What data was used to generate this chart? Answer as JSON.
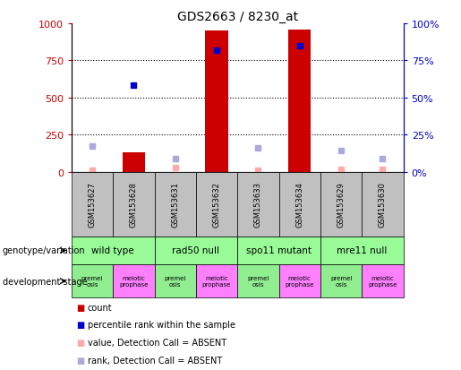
{
  "title": "GDS2663 / 8230_at",
  "samples": [
    "GSM153627",
    "GSM153628",
    "GSM153631",
    "GSM153632",
    "GSM153633",
    "GSM153634",
    "GSM153629",
    "GSM153630"
  ],
  "count_values": [
    null,
    130,
    null,
    950,
    null,
    960,
    null,
    null
  ],
  "count_absent": [
    10,
    null,
    25,
    null,
    10,
    null,
    15,
    15
  ],
  "rank_values": [
    null,
    58,
    null,
    82,
    null,
    85,
    null,
    null
  ],
  "rank_absent": [
    17,
    null,
    9,
    null,
    16,
    null,
    14,
    9
  ],
  "ylim_left": [
    0,
    1000
  ],
  "ylim_right": [
    0,
    100
  ],
  "yticks_left": [
    0,
    250,
    500,
    750,
    1000
  ],
  "yticks_right": [
    0,
    25,
    50,
    75,
    100
  ],
  "yticklabels_left": [
    "0",
    "250",
    "500",
    "750",
    "1000"
  ],
  "yticklabels_right": [
    "0",
    "25",
    "50",
    "75",
    "100%"
  ],
  "genotype_groups": [
    {
      "label": "wild type",
      "start": 0,
      "end": 2
    },
    {
      "label": "rad50 null",
      "start": 2,
      "end": 4
    },
    {
      "label": "spo11 mutant",
      "start": 4,
      "end": 6
    },
    {
      "label": "mre11 null",
      "start": 6,
      "end": 8
    }
  ],
  "dev_stage_groups": [
    {
      "label": "premei\nosis",
      "start": 0,
      "end": 1,
      "color": "#90EE90"
    },
    {
      "label": "meiotic\nprophase",
      "start": 1,
      "end": 2,
      "color": "#FF80FF"
    },
    {
      "label": "premei\nosis",
      "start": 2,
      "end": 3,
      "color": "#90EE90"
    },
    {
      "label": "meiotic\nprophase",
      "start": 3,
      "end": 4,
      "color": "#FF80FF"
    },
    {
      "label": "premei\nosis",
      "start": 4,
      "end": 5,
      "color": "#90EE90"
    },
    {
      "label": "meiotic\nprophase",
      "start": 5,
      "end": 6,
      "color": "#FF80FF"
    },
    {
      "label": "premei\nosis",
      "start": 6,
      "end": 7,
      "color": "#90EE90"
    },
    {
      "label": "meiotic\nprophase",
      "start": 7,
      "end": 8,
      "color": "#FF80FF"
    }
  ],
  "count_color": "#CC0000",
  "count_absent_color": "#FFAAAA",
  "rank_color": "#0000CC",
  "rank_absent_color": "#AAAADD",
  "bar_width": 0.55,
  "grid_color": "#000000",
  "axis_color_left": "#CC0000",
  "axis_color_right": "#0000CC",
  "sample_box_color": "#C0C0C0",
  "genotype_box_color": "#98FB98",
  "legend_items": [
    {
      "label": "count",
      "color": "#CC0000"
    },
    {
      "label": "percentile rank within the sample",
      "color": "#0000CC"
    },
    {
      "label": "value, Detection Call = ABSENT",
      "color": "#FFAAAA"
    },
    {
      "label": "rank, Detection Call = ABSENT",
      "color": "#AAAADD"
    }
  ]
}
